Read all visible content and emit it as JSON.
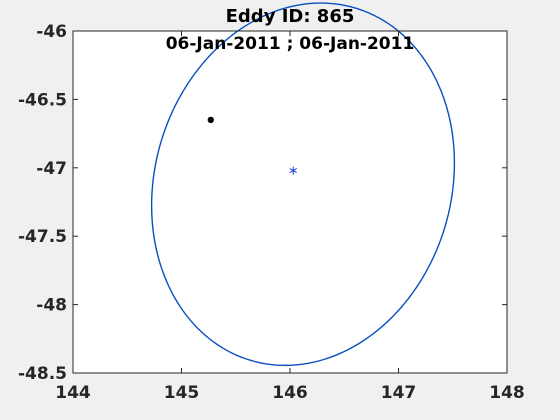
{
  "chart_data": {
    "type": "scatter",
    "title": "Eddy ID: 865",
    "subtitle": "06-Jan-2011 ; 06-Jan-2011",
    "xlabel": "",
    "ylabel": "",
    "xlim": [
      144,
      148
    ],
    "ylim": [
      -48.5,
      -46
    ],
    "x_ticks": [
      144,
      145,
      146,
      147,
      148
    ],
    "y_ticks": [
      -46,
      -46.5,
      -47,
      -47.5,
      -48,
      -48.5
    ],
    "grid": false,
    "colors": {
      "ellipse": "#0a4fc4",
      "center": "#1f3fd6",
      "point": "#000000",
      "axes_bg": "#ffffff",
      "figure_bg": "#f0f0f0"
    },
    "series": [
      {
        "kind": "ellipse-outline",
        "center": [
          146.12,
          -47.12
        ],
        "semi_major": 1.445,
        "semi_minor": 1.27,
        "rotation_deg": 33
      },
      {
        "kind": "center-marker",
        "marker": "asterisk",
        "x": [
          146.03
        ],
        "y": [
          -47.02
        ]
      },
      {
        "kind": "point",
        "marker": "filled-dot",
        "x": [
          145.27
        ],
        "y": [
          -46.65
        ]
      }
    ]
  }
}
